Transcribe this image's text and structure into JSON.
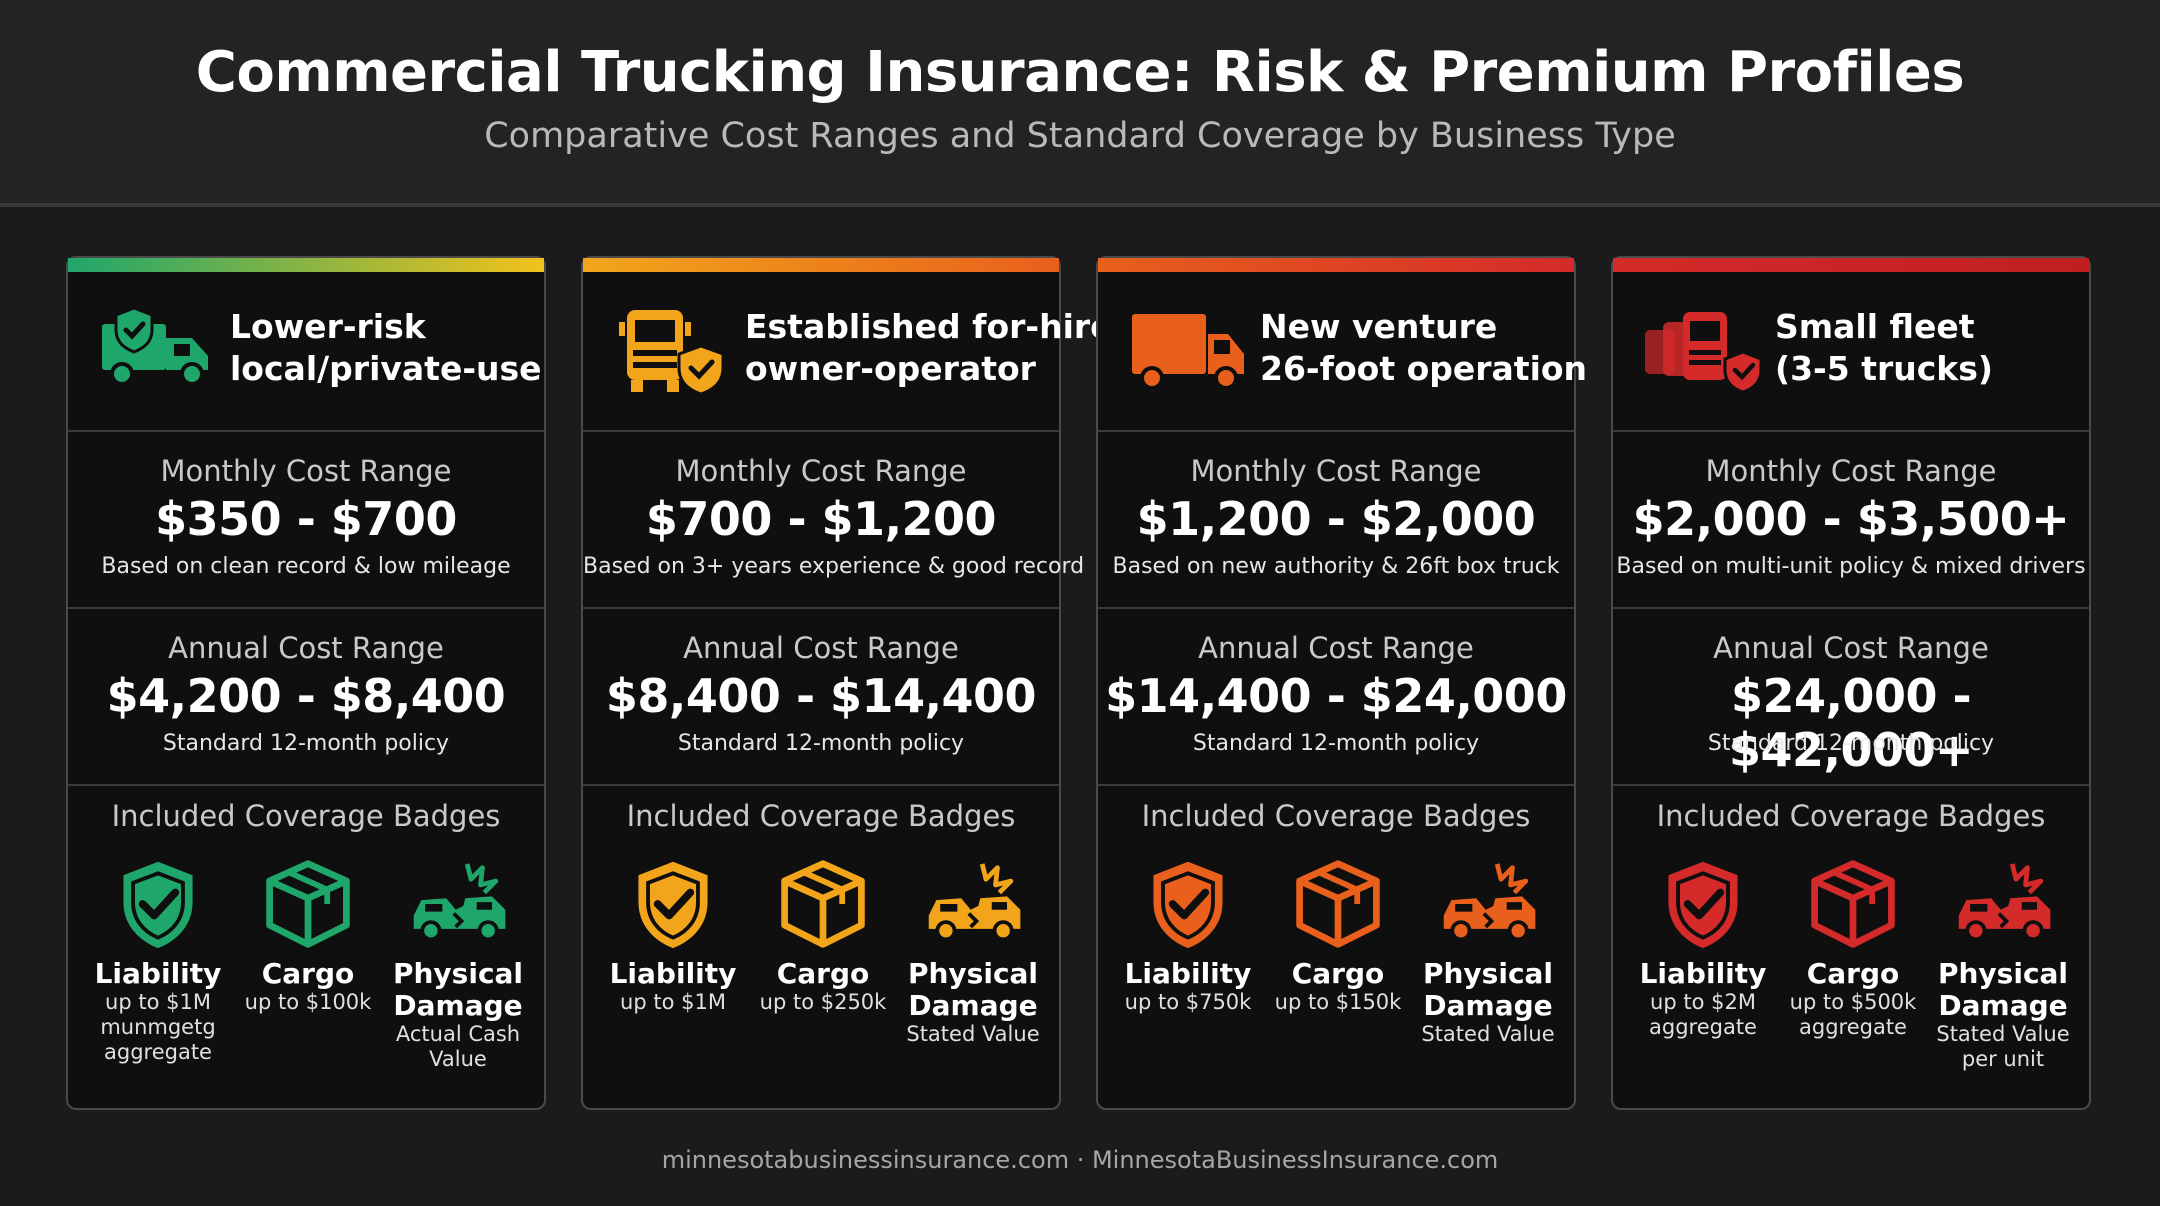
{
  "header": {
    "title": "Commercial Trucking Insurance: Risk & Premium Profiles",
    "subtitle": "Comparative Cost Ranges and Standard Coverage by Business Type"
  },
  "cards": [
    {
      "name_line1": "Lower-risk",
      "name_line2": "local/private-use",
      "accent": "#1fa66b",
      "header_icon": "shield-truck-icon",
      "monthly": {
        "label": "Monthly Cost Range",
        "value": "$350 - $700",
        "note": "Based on clean record & low mileage"
      },
      "annual": {
        "label": "Annual Cost Range",
        "value": "$4,200 - $8,400",
        "note": "Standard 12-month policy"
      },
      "badges_label": "Included Coverage Badges",
      "badges": [
        {
          "icon": "shield-check-icon",
          "name": "Liability",
          "detail_lines": [
            "up to $1M",
            "munmgetg",
            "aggregate"
          ]
        },
        {
          "icon": "box-icon",
          "name": "Cargo",
          "detail_lines": [
            "up to $100k"
          ]
        },
        {
          "icon": "car-crash-icon",
          "name_lines": [
            "Physical",
            "Damage"
          ],
          "detail_lines": [
            "Actual Cash",
            "Value"
          ]
        }
      ]
    },
    {
      "name_line1": "Established for-hire",
      "name_line2": "owner-operator",
      "accent": "#f2a51a",
      "header_icon": "truck-shield-icon",
      "monthly": {
        "label": "Monthly Cost Range",
        "value": "$700 - $1,200",
        "note": "Based on 3+ years experience & good record"
      },
      "annual": {
        "label": "Annual Cost Range",
        "value": "$8,400 - $14,400",
        "note": "Standard 12-month policy"
      },
      "badges_label": "Included Coverage Badges",
      "badges": [
        {
          "icon": "shield-check-icon",
          "name": "Liability",
          "detail_lines": [
            "up to $1M"
          ]
        },
        {
          "icon": "box-icon",
          "name": "Cargo",
          "detail_lines": [
            "up to $250k"
          ]
        },
        {
          "icon": "car-crash-icon",
          "name_lines": [
            "Physical",
            "Damage"
          ],
          "detail_lines": [
            "Stated Value"
          ]
        }
      ]
    },
    {
      "name_line1": "New venture",
      "name_line2": "26-foot operation",
      "accent": "#e8601c",
      "header_icon": "box-truck-icon",
      "monthly": {
        "label": "Monthly Cost Range",
        "value": "$1,200 - $2,000",
        "note": "Based on new authority & 26ft box truck"
      },
      "annual": {
        "label": "Annual Cost Range",
        "value": "$14,400 - $24,000",
        "note": "Standard 12-month policy"
      },
      "badges_label": "Included Coverage Badges",
      "badges": [
        {
          "icon": "shield-check-icon",
          "name": "Liability",
          "detail_lines": [
            "up to $750k"
          ]
        },
        {
          "icon": "box-icon",
          "name": "Cargo",
          "detail_lines": [
            "up to $150k"
          ]
        },
        {
          "icon": "car-crash-icon",
          "name_lines": [
            "Physical",
            "Damage"
          ],
          "detail_lines": [
            "Stated Value"
          ]
        }
      ]
    },
    {
      "name_line1": "Small fleet",
      "name_line2": "(3-5 trucks)",
      "accent": "#d42a2a",
      "header_icon": "fleet-shield-icon",
      "monthly": {
        "label": "Monthly Cost Range",
        "value": "$2,000 - $3,500+",
        "note": "Based on multi-unit policy & mixed drivers"
      },
      "annual": {
        "label": "Annual Cost Range",
        "value": "$24,000 - $42,000+",
        "note": "Standard 12-month policy"
      },
      "badges_label": "Included Coverage Badges",
      "badges": [
        {
          "icon": "shield-check-icon",
          "name": "Liability",
          "detail_lines": [
            "up to $2M",
            "aggregate"
          ]
        },
        {
          "icon": "box-icon",
          "name": "Cargo",
          "detail_lines": [
            "up to $500k",
            "aggregate"
          ]
        },
        {
          "icon": "car-crash-icon",
          "name_lines": [
            "Physical",
            "Damage"
          ],
          "detail_lines": [
            "Stated Value",
            "per unit"
          ]
        }
      ]
    }
  ],
  "footer": {
    "text": "minnesotabusinessinsurance.com · MinnesotaBusinessInsurance.com"
  }
}
